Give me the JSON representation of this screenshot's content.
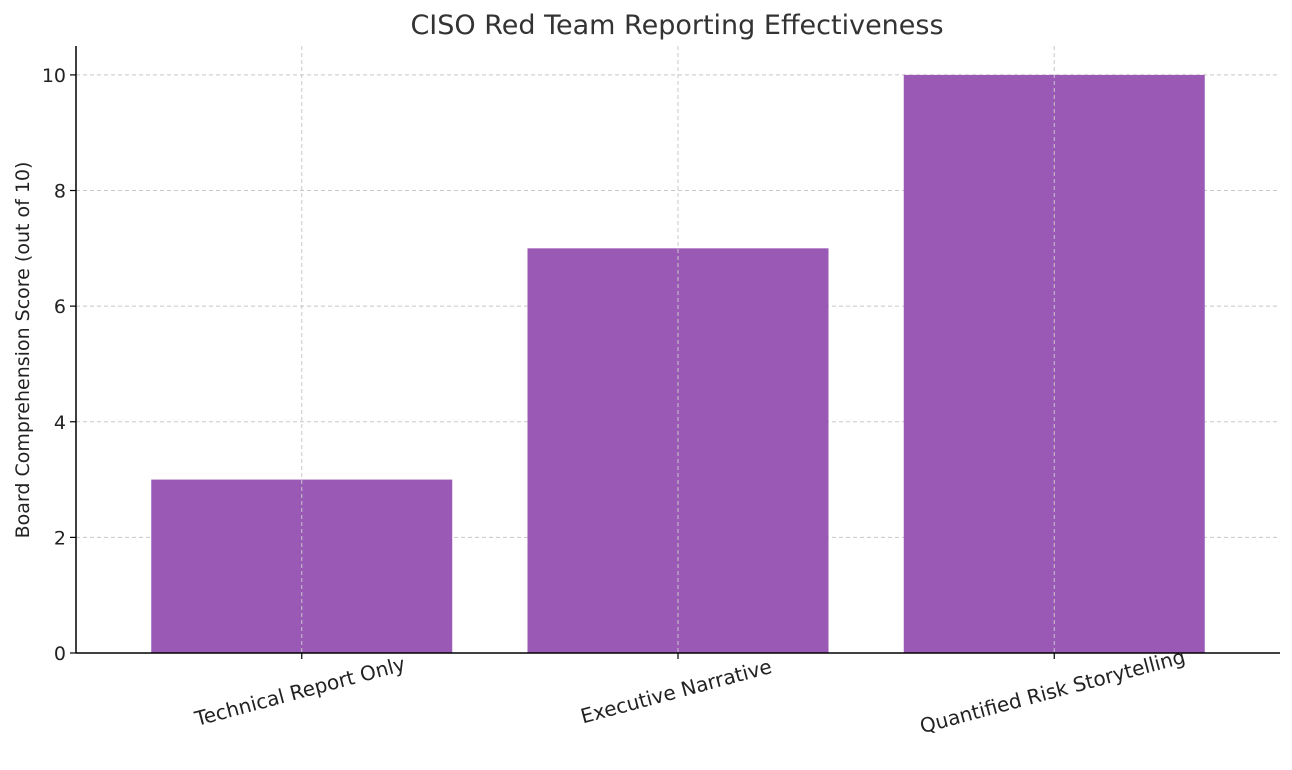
{
  "chart_data": {
    "type": "bar",
    "title": "CISO Red Team Reporting Effectiveness",
    "xlabel": "",
    "ylabel": "Board Comprehension Score (out of 10)",
    "categories": [
      "Technical Report Only",
      "Executive Narrative",
      "Quantified Risk Storytelling"
    ],
    "values": [
      3,
      7,
      10
    ],
    "ylim": [
      0,
      10.5
    ],
    "yticks": [
      0,
      2,
      4,
      6,
      8,
      10
    ],
    "grid": true,
    "bar_color": "#9b59b6",
    "grid_color": "#c8c8c8",
    "xtick_rotation_deg": -15
  }
}
